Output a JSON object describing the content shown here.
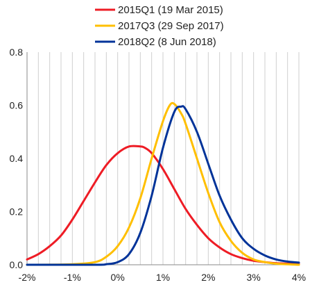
{
  "chart_data": {
    "type": "line",
    "title": "",
    "xlabel": "",
    "ylabel": "",
    "xlim": [
      -2,
      4
    ],
    "ylim": [
      0,
      0.8
    ],
    "x_tick_labels": [
      "-2%",
      "-1%",
      "0%",
      "1%",
      "2%",
      "3%",
      "4%"
    ],
    "y_tick_labels": [
      "0.0",
      "0.2",
      "0.4",
      "0.6",
      "0.8"
    ],
    "x_grid_step": 0.25,
    "grid": true,
    "legend_position": "top-center",
    "series": [
      {
        "name": "2015Q1 (19 Mar 2015)",
        "color": "#ee1c25",
        "points": [
          [
            -2.0,
            0.02
          ],
          [
            -1.75,
            0.04
          ],
          [
            -1.5,
            0.07
          ],
          [
            -1.25,
            0.11
          ],
          [
            -1.0,
            0.17
          ],
          [
            -0.75,
            0.24
          ],
          [
            -0.5,
            0.31
          ],
          [
            -0.25,
            0.375
          ],
          [
            0.0,
            0.42
          ],
          [
            0.25,
            0.445
          ],
          [
            0.5,
            0.445
          ],
          [
            0.6,
            0.44
          ],
          [
            0.75,
            0.42
          ],
          [
            1.0,
            0.36
          ],
          [
            1.25,
            0.285
          ],
          [
            1.5,
            0.21
          ],
          [
            1.75,
            0.15
          ],
          [
            2.0,
            0.1
          ],
          [
            2.25,
            0.065
          ],
          [
            2.5,
            0.04
          ],
          [
            2.75,
            0.025
          ],
          [
            3.0,
            0.015
          ],
          [
            3.25,
            0.01
          ],
          [
            3.5,
            0.006
          ],
          [
            4.0,
            0.003
          ]
        ]
      },
      {
        "name": "2017Q3 (29 Sep 2017)",
        "color": "#ffbf00",
        "points": [
          [
            -2.0,
            0.0
          ],
          [
            -1.0,
            0.002
          ],
          [
            -0.5,
            0.01
          ],
          [
            -0.25,
            0.03
          ],
          [
            0.0,
            0.07
          ],
          [
            0.25,
            0.14
          ],
          [
            0.5,
            0.25
          ],
          [
            0.75,
            0.4
          ],
          [
            1.0,
            0.54
          ],
          [
            1.15,
            0.6
          ],
          [
            1.25,
            0.605
          ],
          [
            1.4,
            0.57
          ],
          [
            1.5,
            0.53
          ],
          [
            1.75,
            0.4
          ],
          [
            2.0,
            0.27
          ],
          [
            2.25,
            0.16
          ],
          [
            2.5,
            0.09
          ],
          [
            2.75,
            0.045
          ],
          [
            3.0,
            0.02
          ],
          [
            3.25,
            0.01
          ],
          [
            3.5,
            0.004
          ],
          [
            4.0,
            0.0
          ]
        ]
      },
      {
        "name": "2018Q2 (8 Jun 2018)",
        "color": "#003399",
        "points": [
          [
            -2.0,
            0.0
          ],
          [
            -0.5,
            0.0
          ],
          [
            -0.25,
            0.002
          ],
          [
            0.0,
            0.01
          ],
          [
            0.25,
            0.04
          ],
          [
            0.5,
            0.12
          ],
          [
            0.75,
            0.26
          ],
          [
            1.0,
            0.44
          ],
          [
            1.25,
            0.575
          ],
          [
            1.4,
            0.595
          ],
          [
            1.5,
            0.585
          ],
          [
            1.75,
            0.5
          ],
          [
            2.0,
            0.38
          ],
          [
            2.25,
            0.26
          ],
          [
            2.5,
            0.17
          ],
          [
            2.75,
            0.1
          ],
          [
            3.0,
            0.06
          ],
          [
            3.25,
            0.035
          ],
          [
            3.5,
            0.02
          ],
          [
            3.75,
            0.012
          ],
          [
            4.0,
            0.008
          ]
        ]
      }
    ]
  }
}
